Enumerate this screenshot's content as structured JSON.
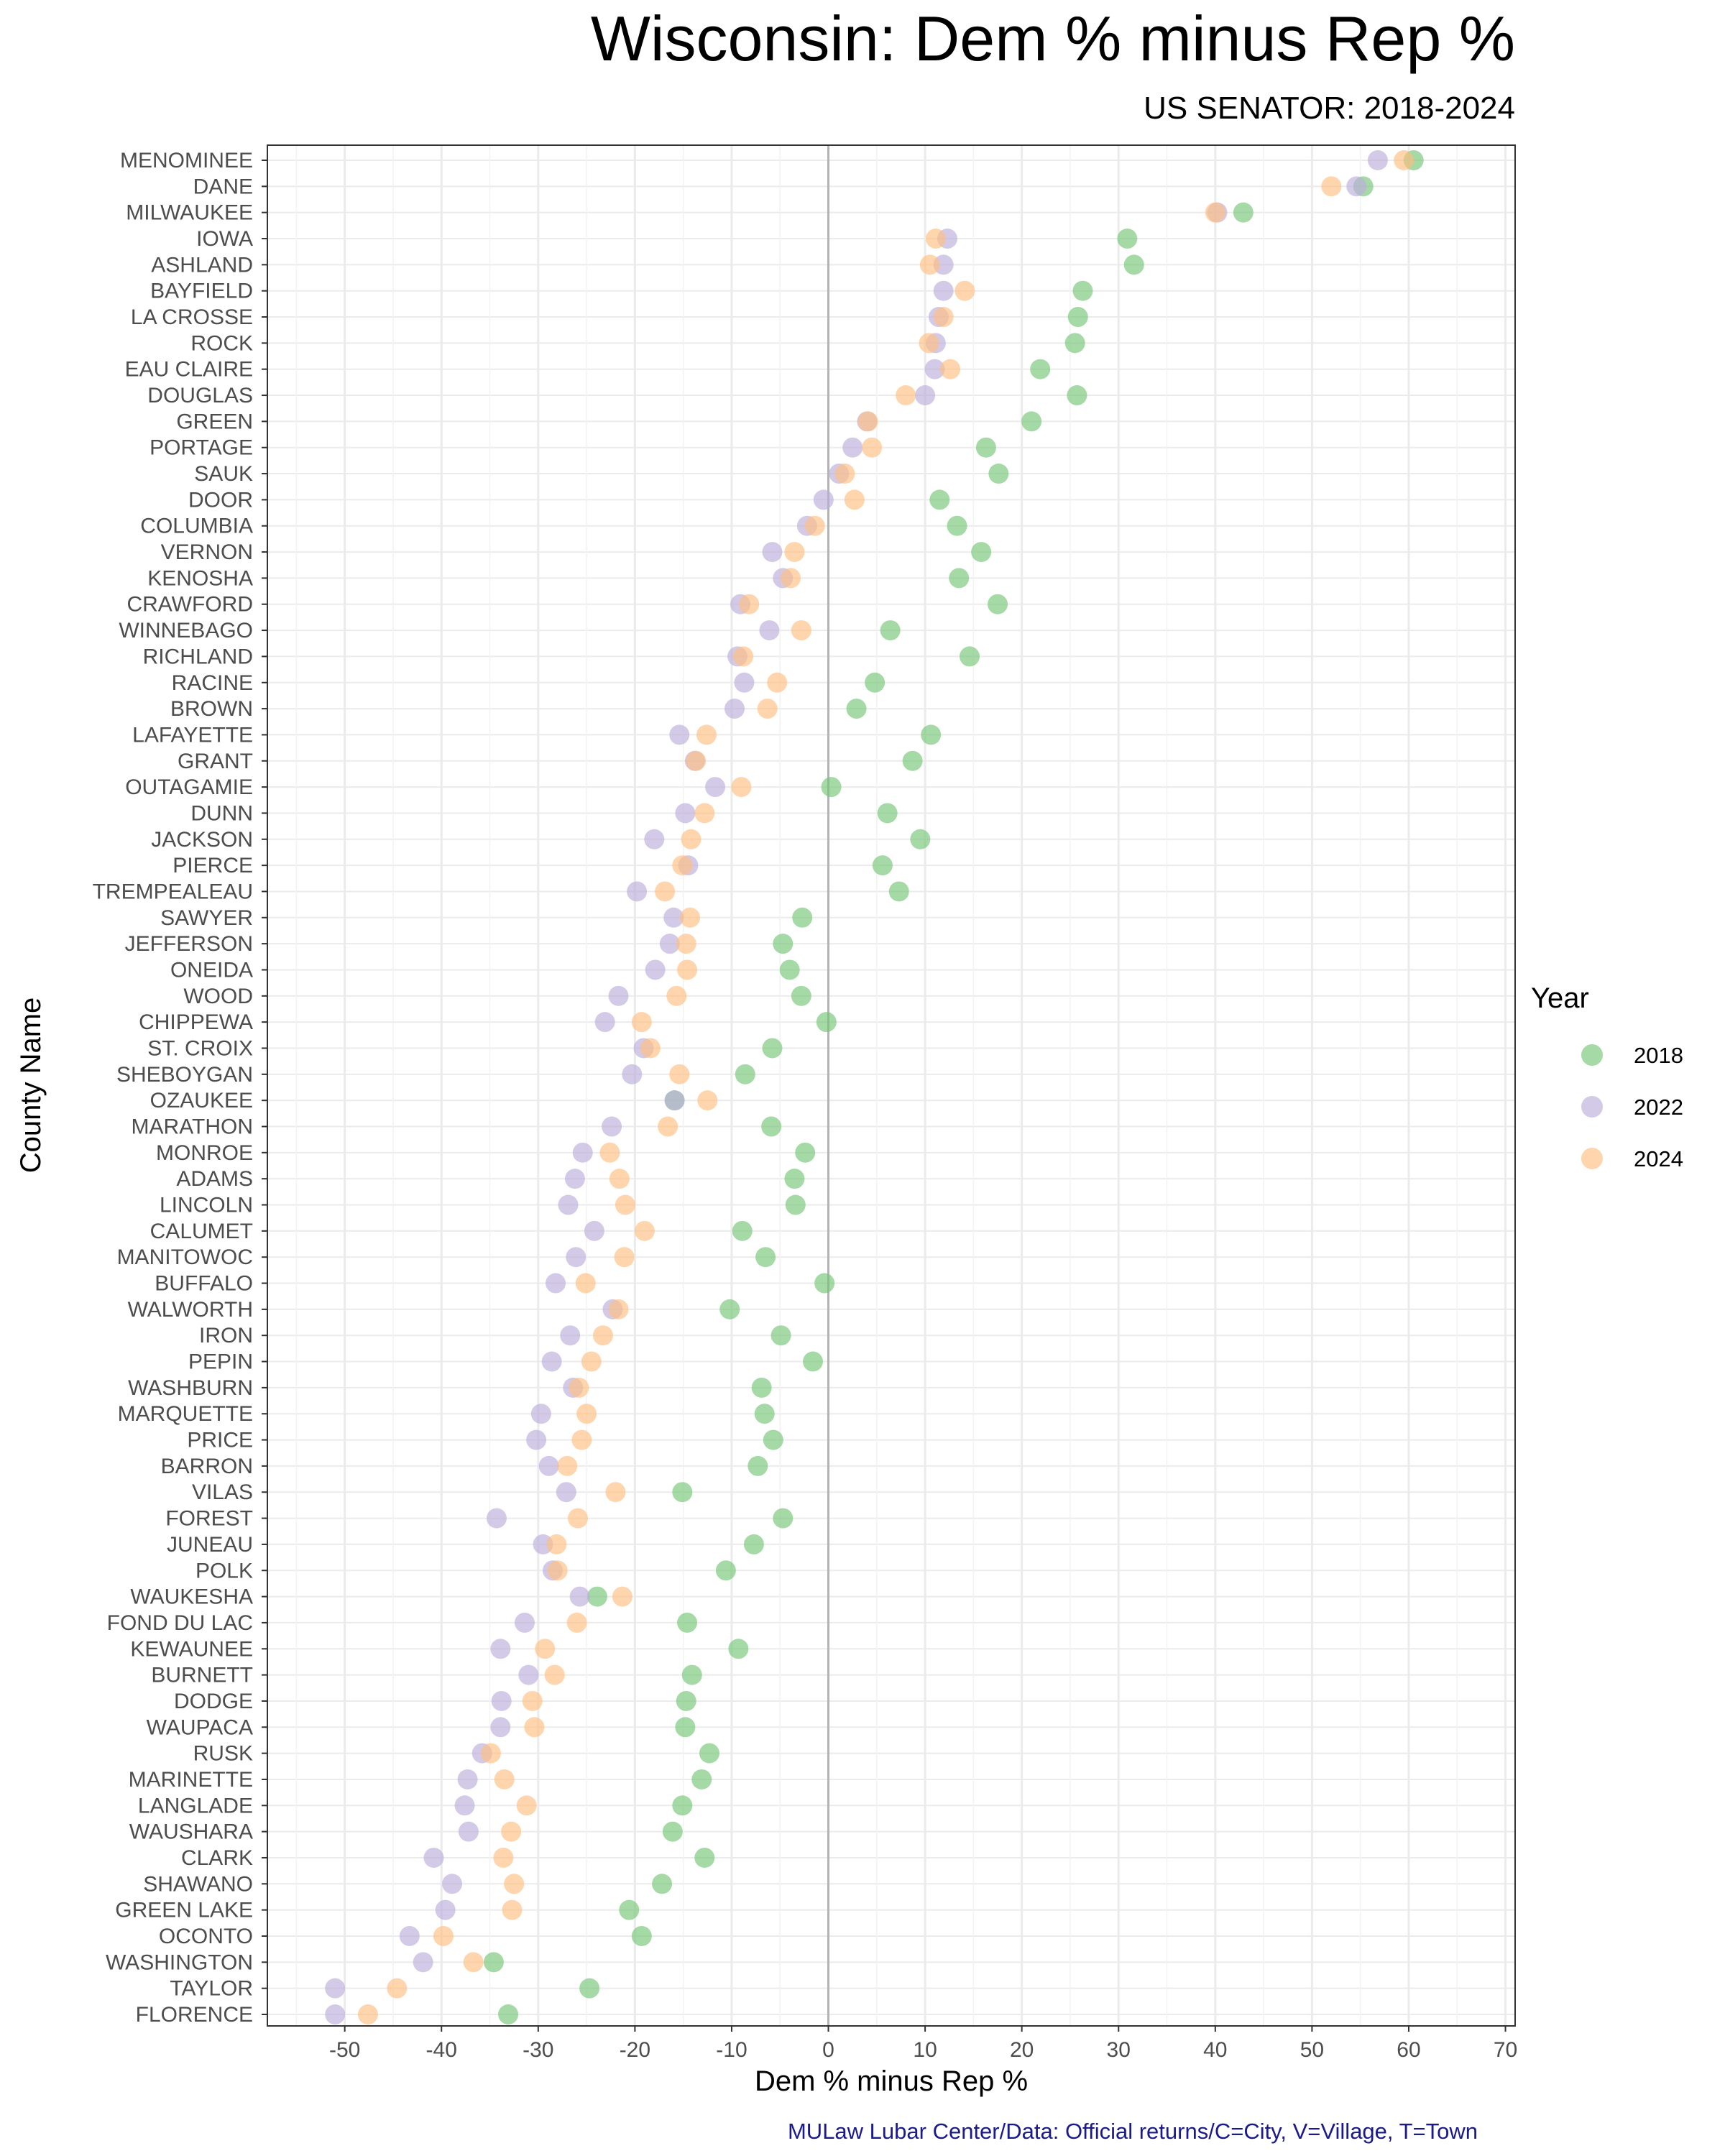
{
  "chart_data": {
    "type": "scatter",
    "title": "Wisconsin: Dem % minus Rep %",
    "subtitle": "US SENATOR: 2018-2024",
    "xlabel": "Dem % minus Rep %",
    "ylabel": "County Name",
    "caption": "MULaw Lubar Center/Data: Official returns/C=City, V=Village, T=Town",
    "xlim": [
      -58,
      71
    ],
    "xticks": [
      -50,
      -40,
      -30,
      -20,
      -10,
      0,
      10,
      20,
      30,
      40,
      50,
      60,
      70
    ],
    "xtick_labels": [
      "-50",
      "-40",
      "-30",
      "-20",
      "-10",
      "0",
      "10",
      "20",
      "30",
      "40",
      "50",
      "60",
      "70"
    ],
    "zero_line": 0,
    "grid": true,
    "legend": {
      "title": "Year",
      "position": "right"
    },
    "series_colors": [
      "#74c476",
      "#bcaedb",
      "#fdbf80"
    ],
    "categories": [
      "MENOMINEE",
      "DANE",
      "MILWAUKEE",
      "IOWA",
      "ASHLAND",
      "BAYFIELD",
      "LA CROSSE",
      "ROCK",
      "EAU CLAIRE",
      "DOUGLAS",
      "GREEN",
      "PORTAGE",
      "SAUK",
      "DOOR",
      "COLUMBIA",
      "VERNON",
      "KENOSHA",
      "CRAWFORD",
      "WINNEBAGO",
      "RICHLAND",
      "RACINE",
      "BROWN",
      "LAFAYETTE",
      "GRANT",
      "OUTAGAMIE",
      "DUNN",
      "JACKSON",
      "PIERCE",
      "TREMPEALEAU",
      "SAWYER",
      "JEFFERSON",
      "ONEIDA",
      "WOOD",
      "CHIPPEWA",
      "ST. CROIX",
      "SHEBOYGAN",
      "OZAUKEE",
      "MARATHON",
      "MONROE",
      "ADAMS",
      "LINCOLN",
      "CALUMET",
      "MANITOWOC",
      "BUFFALO",
      "WALWORTH",
      "IRON",
      "PEPIN",
      "WASHBURN",
      "MARQUETTE",
      "PRICE",
      "BARRON",
      "VILAS",
      "FOREST",
      "JUNEAU",
      "POLK",
      "WAUKESHA",
      "FOND DU LAC",
      "KEWAUNEE",
      "BURNETT",
      "DODGE",
      "WAUPACA",
      "RUSK",
      "MARINETTE",
      "LANGLADE",
      "WAUSHARA",
      "CLARK",
      "SHAWANO",
      "GREEN LAKE",
      "OCONTO",
      "WASHINGTON",
      "TAYLOR",
      "FLORENCE"
    ],
    "series": [
      {
        "name": "2018",
        "values": [
          60.5,
          55.3,
          42.9,
          30.9,
          31.6,
          26.3,
          25.8,
          25.5,
          21.9,
          25.7,
          21.0,
          16.3,
          17.6,
          11.5,
          13.3,
          15.8,
          13.5,
          17.5,
          6.4,
          14.6,
          4.8,
          2.9,
          10.6,
          8.7,
          0.3,
          6.1,
          9.5,
          5.6,
          7.3,
          -2.7,
          -4.7,
          -4.0,
          -2.8,
          -0.2,
          -5.8,
          -8.6,
          -15.9,
          -5.9,
          -2.4,
          -3.5,
          -3.4,
          -8.9,
          -6.5,
          -0.4,
          -10.2,
          -4.9,
          -1.6,
          -6.9,
          -6.6,
          -5.7,
          -7.3,
          -15.1,
          -4.7,
          -7.7,
          -10.6,
          -23.9,
          -14.6,
          -9.3,
          -14.1,
          -14.7,
          -14.8,
          -12.3,
          -13.1,
          -15.1,
          -16.1,
          -12.8,
          -17.2,
          -20.6,
          -19.3,
          -34.6,
          -24.7,
          -33.1
        ]
      },
      {
        "name": "2022",
        "values": [
          56.8,
          54.6,
          40.2,
          12.3,
          11.9,
          11.9,
          11.4,
          11.1,
          11.0,
          10.0,
          4.0,
          2.5,
          1.1,
          -0.5,
          -2.2,
          -5.8,
          -4.7,
          -9.1,
          -6.1,
          -9.4,
          -8.7,
          -9.7,
          -15.4,
          -13.8,
          -11.7,
          -14.8,
          -18.0,
          -14.5,
          -19.8,
          -16.0,
          -16.4,
          -17.9,
          -21.7,
          -23.1,
          -19.1,
          -20.3,
          -15.9,
          -22.4,
          -25.4,
          -26.2,
          -26.9,
          -24.2,
          -26.1,
          -28.2,
          -22.3,
          -26.7,
          -28.6,
          -26.4,
          -29.7,
          -30.2,
          -28.9,
          -27.1,
          -34.3,
          -29.5,
          -28.5,
          -25.7,
          -31.4,
          -33.9,
          -31.0,
          -33.8,
          -33.9,
          -35.8,
          -37.3,
          -37.6,
          -37.2,
          -40.8,
          -38.9,
          -39.6,
          -43.3,
          -41.9,
          -51.0,
          -51.0
        ]
      },
      {
        "name": "2024",
        "values": [
          59.5,
          52.0,
          40.0,
          11.1,
          10.5,
          14.1,
          11.9,
          10.4,
          12.6,
          8.0,
          4.1,
          4.5,
          1.7,
          2.7,
          -1.4,
          -3.5,
          -3.9,
          -8.2,
          -2.8,
          -8.8,
          -5.3,
          -6.3,
          -12.6,
          -13.7,
          -9.0,
          -12.8,
          -14.2,
          -15.1,
          -16.9,
          -14.3,
          -14.7,
          -14.6,
          -15.7,
          -19.3,
          -18.4,
          -15.4,
          -12.5,
          -16.6,
          -22.6,
          -21.6,
          -21.0,
          -19.0,
          -21.1,
          -25.1,
          -21.7,
          -23.3,
          -24.5,
          -25.8,
          -25.0,
          -25.5,
          -27.0,
          -22.0,
          -25.9,
          -28.1,
          -28.0,
          -21.3,
          -26.0,
          -29.3,
          -28.3,
          -30.6,
          -30.4,
          -34.9,
          -33.5,
          -31.2,
          -32.8,
          -33.6,
          -32.5,
          -32.7,
          -39.8,
          -36.7,
          -44.6,
          -47.6
        ]
      }
    ]
  }
}
